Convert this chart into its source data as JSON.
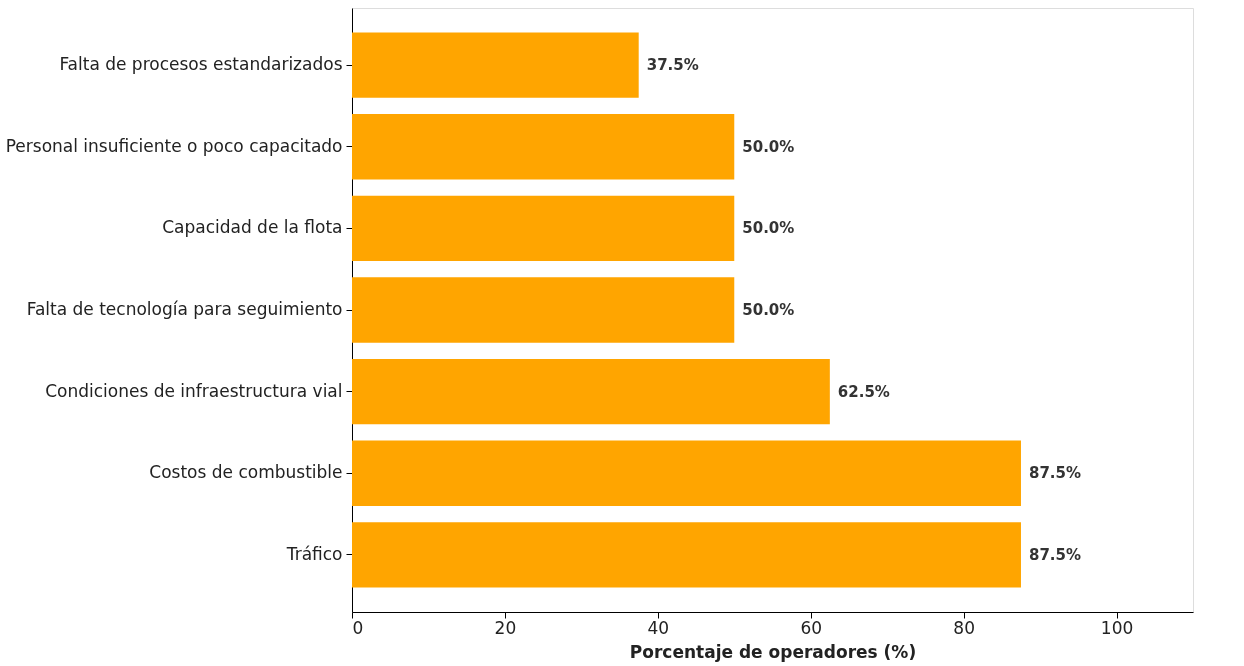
{
  "chart_data": {
    "type": "bar",
    "orientation": "horizontal",
    "xlabel": "Porcentaje de operadores (%)",
    "categories": [
      "Falta de procesos estandarizados",
      "Personal insuficiente o poco capacitado",
      "Capacidad de la flota",
      "Falta de tecnología para seguimiento",
      "Condiciones de infraestructura vial",
      "Costos de combustible",
      "Tráfico"
    ],
    "values": [
      37.5,
      50.0,
      50.0,
      50.0,
      62.5,
      87.5,
      87.5
    ],
    "value_labels": [
      "37.5%",
      "50.0%",
      "50.0%",
      "50.0%",
      "62.5%",
      "87.5%",
      "87.5%"
    ],
    "color": "#ffa500",
    "xlim": [
      0,
      110
    ],
    "xticks": [
      0,
      20,
      40,
      60,
      80,
      100
    ]
  }
}
